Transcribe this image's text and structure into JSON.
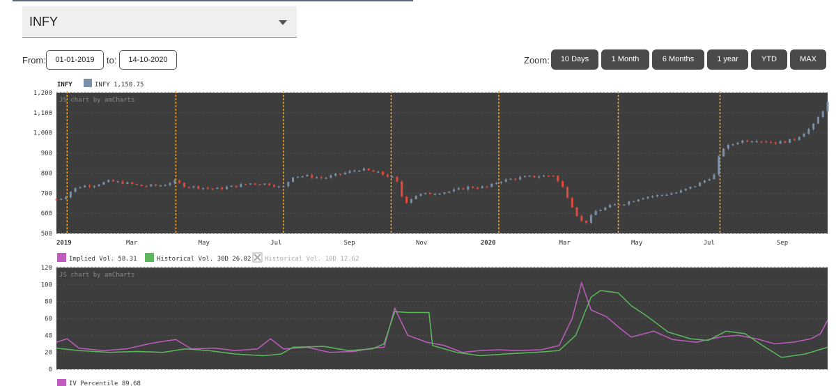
{
  "symbol_select": {
    "value": "INFY"
  },
  "date_range": {
    "from_label": "From:",
    "from_value": "01-01-2019",
    "to_label": "to:",
    "to_value": "14-10-2020"
  },
  "zoom": {
    "label": "Zoom:",
    "buttons": [
      "10 Days",
      "1 Month",
      "6 Months",
      "1 year",
      "YTD",
      "MAX"
    ]
  },
  "colors": {
    "plot_bg": "#3d3d3d",
    "up": "#7a8fa8",
    "down": "#e04a3c",
    "event_line": "#f5a623",
    "implied": "#c05cc0",
    "historical30": "#5cb85c",
    "historical10": "#bdbdbd"
  },
  "price_panel": {
    "title": "INFY",
    "legend": "INFY 1,150.75",
    "credit": "JS chart by amCharts",
    "x_labels": [
      "2019",
      "Mar",
      "May",
      "Jul",
      "Sep",
      "Nov",
      "2020",
      "Mar",
      "May",
      "Jul",
      "Sep"
    ]
  },
  "vol_panel": {
    "legend": [
      {
        "name": "Implied Vol.",
        "value": "58.31",
        "color": "#c05cc0",
        "enabled": true
      },
      {
        "name": "Historical Vol. 30D",
        "value": "26.02",
        "color": "#5cb85c",
        "enabled": true
      },
      {
        "name": "Historical Vol. 10D",
        "value": "12.62",
        "color": "#bdbdbd",
        "enabled": false
      }
    ],
    "credit": "JS chart by amCharts"
  },
  "iv_percentile": {
    "label": "IV Percentile",
    "value": "89.68"
  },
  "chart_data": [
    {
      "type": "line",
      "title": "INFY",
      "series_kind": "candlestick",
      "legend": "INFY 1,150.75",
      "x_range": [
        "2019-01-01",
        "2020-10-14"
      ],
      "ylim": [
        500,
        1200
      ],
      "y_ticks": [
        "500",
        "600",
        "700",
        "800",
        "900",
        "1,000",
        "1,100",
        "1,200"
      ],
      "x_labels": [
        "2019",
        "Mar",
        "May",
        "Jul",
        "Sep",
        "Nov",
        "2020",
        "Mar",
        "May",
        "Jul",
        "Sep"
      ],
      "event_markers": [
        "2019-01-10",
        "2019-04-12",
        "2019-07-12",
        "2019-10-11",
        "2020-01-10",
        "2020-04-20",
        "2020-07-15"
      ],
      "price_points": [
        [
          "2019-01-01",
          670
        ],
        [
          "2019-01-08",
          680
        ],
        [
          "2019-01-15",
          720
        ],
        [
          "2019-01-22",
          735
        ],
        [
          "2019-02-01",
          740
        ],
        [
          "2019-02-15",
          760
        ],
        [
          "2019-03-01",
          750
        ],
        [
          "2019-03-15",
          735
        ],
        [
          "2019-04-01",
          740
        ],
        [
          "2019-04-10",
          760
        ],
        [
          "2019-04-20",
          735
        ],
        [
          "2019-05-01",
          730
        ],
        [
          "2019-05-15",
          720
        ],
        [
          "2019-06-01",
          735
        ],
        [
          "2019-06-15",
          750
        ],
        [
          "2019-07-01",
          745
        ],
        [
          "2019-07-11",
          725
        ],
        [
          "2019-07-20",
          785
        ],
        [
          "2019-08-01",
          785
        ],
        [
          "2019-08-15",
          775
        ],
        [
          "2019-09-01",
          800
        ],
        [
          "2019-09-15",
          820
        ],
        [
          "2019-10-01",
          800
        ],
        [
          "2019-10-15",
          770
        ],
        [
          "2019-10-22",
          650
        ],
        [
          "2019-11-01",
          690
        ],
        [
          "2019-11-15",
          700
        ],
        [
          "2019-12-01",
          710
        ],
        [
          "2019-12-15",
          730
        ],
        [
          "2020-01-01",
          730
        ],
        [
          "2020-01-10",
          760
        ],
        [
          "2020-01-20",
          770
        ],
        [
          "2020-02-01",
          780
        ],
        [
          "2020-02-15",
          785
        ],
        [
          "2020-02-25",
          790
        ],
        [
          "2020-03-05",
          720
        ],
        [
          "2020-03-15",
          600
        ],
        [
          "2020-03-22",
          545
        ],
        [
          "2020-04-01",
          610
        ],
        [
          "2020-04-15",
          640
        ],
        [
          "2020-04-25",
          650
        ],
        [
          "2020-05-10",
          680
        ],
        [
          "2020-05-25",
          690
        ],
        [
          "2020-06-10",
          705
        ],
        [
          "2020-06-25",
          740
        ],
        [
          "2020-07-10",
          790
        ],
        [
          "2020-07-16",
          920
        ],
        [
          "2020-08-01",
          960
        ],
        [
          "2020-08-15",
          965
        ],
        [
          "2020-09-01",
          950
        ],
        [
          "2020-09-15",
          965
        ],
        [
          "2020-10-01",
          1030
        ],
        [
          "2020-10-14",
          1150
        ]
      ]
    },
    {
      "type": "line",
      "x_range": [
        "2019-01-01",
        "2020-10-14"
      ],
      "ylim": [
        0,
        120
      ],
      "y_ticks": [
        "0",
        "20",
        "40",
        "60",
        "80",
        "100",
        "120"
      ],
      "series": [
        {
          "name": "Implied Vol.",
          "values": [
            [
              "2019-01-01",
              32
            ],
            [
              "2019-01-10",
              36
            ],
            [
              "2019-01-20",
              25
            ],
            [
              "2019-02-10",
              22
            ],
            [
              "2019-03-01",
              24
            ],
            [
              "2019-03-20",
              30
            ],
            [
              "2019-04-01",
              33
            ],
            [
              "2019-04-12",
              35
            ],
            [
              "2019-04-25",
              24
            ],
            [
              "2019-05-15",
              25
            ],
            [
              "2019-06-01",
              22
            ],
            [
              "2019-06-20",
              24
            ],
            [
              "2019-07-01",
              36
            ],
            [
              "2019-07-12",
              24
            ],
            [
              "2019-08-01",
              26
            ],
            [
              "2019-08-20",
              20
            ],
            [
              "2019-09-10",
              21
            ],
            [
              "2019-09-25",
              25
            ],
            [
              "2019-10-05",
              26
            ],
            [
              "2019-10-14",
              72
            ],
            [
              "2019-10-25",
              40
            ],
            [
              "2019-11-10",
              32
            ],
            [
              "2019-11-25",
              28
            ],
            [
              "2019-12-10",
              20
            ],
            [
              "2019-12-25",
              22
            ],
            [
              "2020-01-10",
              23
            ],
            [
              "2020-01-25",
              22
            ],
            [
              "2020-02-15",
              23
            ],
            [
              "2020-03-01",
              28
            ],
            [
              "2020-03-12",
              60
            ],
            [
              "2020-03-20",
              102
            ],
            [
              "2020-03-28",
              70
            ],
            [
              "2020-04-10",
              62
            ],
            [
              "2020-04-20",
              50
            ],
            [
              "2020-05-01",
              38
            ],
            [
              "2020-05-20",
              45
            ],
            [
              "2020-06-05",
              35
            ],
            [
              "2020-06-25",
              32
            ],
            [
              "2020-07-15",
              38
            ],
            [
              "2020-07-30",
              40
            ],
            [
              "2020-08-15",
              36
            ],
            [
              "2020-08-30",
              30
            ],
            [
              "2020-09-15",
              32
            ],
            [
              "2020-09-30",
              36
            ],
            [
              "2020-10-08",
              42
            ],
            [
              "2020-10-14",
              58
            ]
          ]
        },
        {
          "name": "Historical Vol. 30D",
          "values": [
            [
              "2019-01-01",
              25
            ],
            [
              "2019-01-20",
              22
            ],
            [
              "2019-02-15",
              20
            ],
            [
              "2019-03-10",
              21
            ],
            [
              "2019-04-01",
              20
            ],
            [
              "2019-04-20",
              24
            ],
            [
              "2019-05-10",
              22
            ],
            [
              "2019-06-01",
              18
            ],
            [
              "2019-06-25",
              16
            ],
            [
              "2019-07-10",
              18
            ],
            [
              "2019-07-20",
              26
            ],
            [
              "2019-08-15",
              27
            ],
            [
              "2019-09-05",
              22
            ],
            [
              "2019-09-25",
              24
            ],
            [
              "2019-10-05",
              30
            ],
            [
              "2019-10-14",
              68
            ],
            [
              "2019-10-25",
              67
            ],
            [
              "2019-11-12",
              67
            ],
            [
              "2019-11-15",
              28
            ],
            [
              "2019-12-05",
              20
            ],
            [
              "2019-12-25",
              16
            ],
            [
              "2020-01-15",
              18
            ],
            [
              "2020-02-10",
              20
            ],
            [
              "2020-03-01",
              22
            ],
            [
              "2020-03-15",
              40
            ],
            [
              "2020-03-28",
              85
            ],
            [
              "2020-04-05",
              93
            ],
            [
              "2020-04-20",
              90
            ],
            [
              "2020-05-01",
              75
            ],
            [
              "2020-05-15",
              62
            ],
            [
              "2020-06-01",
              44
            ],
            [
              "2020-06-20",
              36
            ],
            [
              "2020-07-05",
              34
            ],
            [
              "2020-07-20",
              45
            ],
            [
              "2020-08-05",
              42
            ],
            [
              "2020-08-20",
              28
            ],
            [
              "2020-09-05",
              14
            ],
            [
              "2020-09-25",
              18
            ],
            [
              "2020-10-14",
              26
            ]
          ]
        },
        {
          "name": "Historical Vol. 10D",
          "values": [],
          "hidden": true
        }
      ]
    }
  ]
}
